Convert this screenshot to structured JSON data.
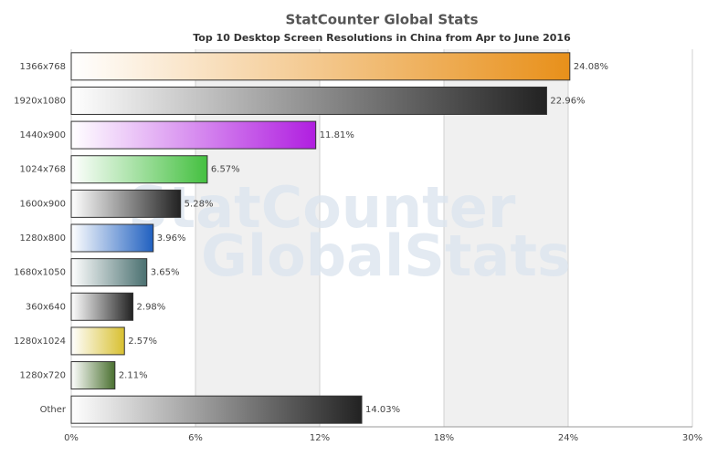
{
  "chart_data": {
    "type": "bar",
    "orientation": "horizontal",
    "title": "StatCounter Global Stats",
    "subtitle": "Top 10 Desktop Screen Resolutions in China from Apr to June 2016",
    "watermark": [
      "StatCounter",
      "GlobalStats"
    ],
    "categories": [
      "1366x768",
      "1920x1080",
      "1440x900",
      "1024x768",
      "1600x900",
      "1280x800",
      "1680x1050",
      "360x640",
      "1280x1024",
      "1280x720",
      "Other"
    ],
    "values": [
      24.08,
      22.96,
      11.81,
      6.57,
      5.28,
      3.96,
      3.65,
      2.98,
      2.57,
      2.11,
      14.03
    ],
    "value_labels": [
      "24.08%",
      "22.96%",
      "11.81%",
      "6.57%",
      "5.28%",
      "3.96%",
      "3.65%",
      "2.98%",
      "2.57%",
      "2.11%",
      "14.03%"
    ],
    "colors": [
      "#e8901a",
      "#222222",
      "#b01ee0",
      "#44c040",
      "#222222",
      "#2060c0",
      "#4a7070",
      "#222222",
      "#d8c030",
      "#4a7030",
      "#222222"
    ],
    "xlim": [
      0,
      30
    ],
    "xticks": [
      {
        "value": 0,
        "label": "0%"
      },
      {
        "value": 6,
        "label": "6%"
      },
      {
        "value": 12,
        "label": "12%"
      },
      {
        "value": 18,
        "label": "18%"
      },
      {
        "value": 24,
        "label": "24%"
      },
      {
        "value": 30,
        "label": "30%"
      }
    ],
    "grid": true
  }
}
